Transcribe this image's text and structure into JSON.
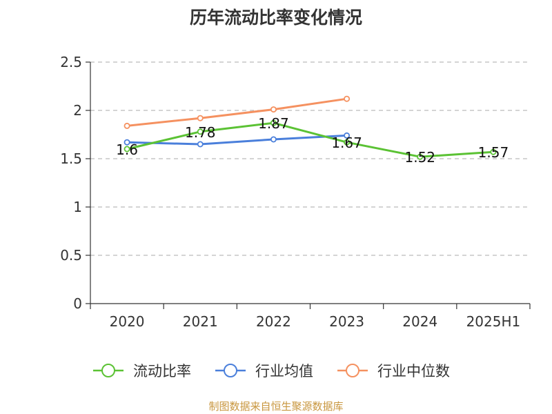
{
  "chart_data": {
    "type": "line",
    "title": "历年流动比率变化情况",
    "categories": [
      "2020",
      "2021",
      "2022",
      "2023",
      "2024",
      "2025H1"
    ],
    "ylim": [
      0,
      2.5
    ],
    "yticks": [
      "0",
      "0.5",
      "1",
      "1.5",
      "2",
      "2.5"
    ],
    "grid": true,
    "legend_position": "bottom",
    "series": [
      {
        "name": "流动比率",
        "color": "#5bc234",
        "values": [
          1.6,
          1.78,
          1.87,
          1.67,
          1.52,
          1.57
        ],
        "labels": [
          "1.6",
          "1.78",
          "1.87",
          "1.67",
          "1.52",
          "1.57"
        ]
      },
      {
        "name": "行业均值",
        "color": "#4a7fdb",
        "values": [
          1.67,
          1.65,
          1.7,
          1.74,
          null,
          null
        ]
      },
      {
        "name": "行业中位数",
        "color": "#f59160",
        "values": [
          1.84,
          1.92,
          2.01,
          2.12,
          null,
          null
        ]
      }
    ]
  },
  "source": "制图数据来自恒生聚源数据库"
}
